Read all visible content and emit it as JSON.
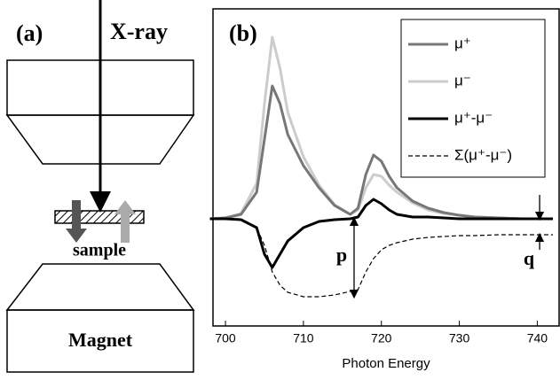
{
  "diagram": {
    "label": "(a)",
    "beam": "X-ray",
    "sample": "sample",
    "magnet": "Magnet"
  },
  "chart_data": {
    "type": "line",
    "panel_label": "(b)",
    "x_label": "Photon Energy",
    "annotations": [
      "p",
      "q"
    ],
    "x": [
      698,
      700,
      702,
      704,
      705,
      706,
      707,
      708,
      710,
      712,
      714,
      716,
      717,
      718,
      719,
      720,
      721,
      722,
      724,
      726,
      728,
      730,
      732,
      735,
      738,
      742
    ],
    "series": [
      {
        "name": "μ⁺",
        "color": "#777777",
        "values": [
          0,
          0.01,
          0.05,
          0.3,
          0.9,
          1.5,
          1.3,
          0.95,
          0.6,
          0.35,
          0.15,
          0.05,
          0.12,
          0.5,
          0.72,
          0.65,
          0.48,
          0.35,
          0.2,
          0.12,
          0.07,
          0.04,
          0.02,
          0.01,
          0,
          0
        ]
      },
      {
        "name": "μ⁻",
        "color": "#cccccc",
        "values": [
          0,
          0.01,
          0.06,
          0.4,
          1.3,
          2.05,
          1.7,
          1.2,
          0.7,
          0.38,
          0.16,
          0.05,
          0.1,
          0.35,
          0.5,
          0.48,
          0.38,
          0.3,
          0.18,
          0.1,
          0.06,
          0.04,
          0.02,
          0.01,
          0,
          0
        ]
      },
      {
        "name": "μ⁺-μ⁻",
        "color": "#000000",
        "values": [
          0,
          0,
          -0.01,
          -0.1,
          -0.4,
          -0.55,
          -0.4,
          -0.25,
          -0.1,
          -0.03,
          -0.01,
          0,
          0.02,
          0.15,
          0.22,
          0.17,
          0.1,
          0.05,
          0.02,
          0.02,
          0.01,
          0,
          0,
          0,
          0,
          0
        ]
      },
      {
        "name": "Σ(μ⁺-μ⁻)",
        "color": "#000000",
        "dashed": true,
        "values": [
          0,
          0,
          -0.01,
          -0.1,
          -0.3,
          -0.6,
          -0.75,
          -0.83,
          -0.88,
          -0.88,
          -0.86,
          -0.82,
          -0.8,
          -0.6,
          -0.45,
          -0.35,
          -0.3,
          -0.27,
          -0.23,
          -0.21,
          -0.2,
          -0.19,
          -0.19,
          -0.18,
          -0.18,
          -0.18
        ]
      }
    ],
    "xlim": [
      698.4,
      742.8
    ],
    "ylim": [
      -1.21,
      2.37
    ],
    "xticks": [
      700,
      710,
      720,
      730,
      740
    ]
  }
}
